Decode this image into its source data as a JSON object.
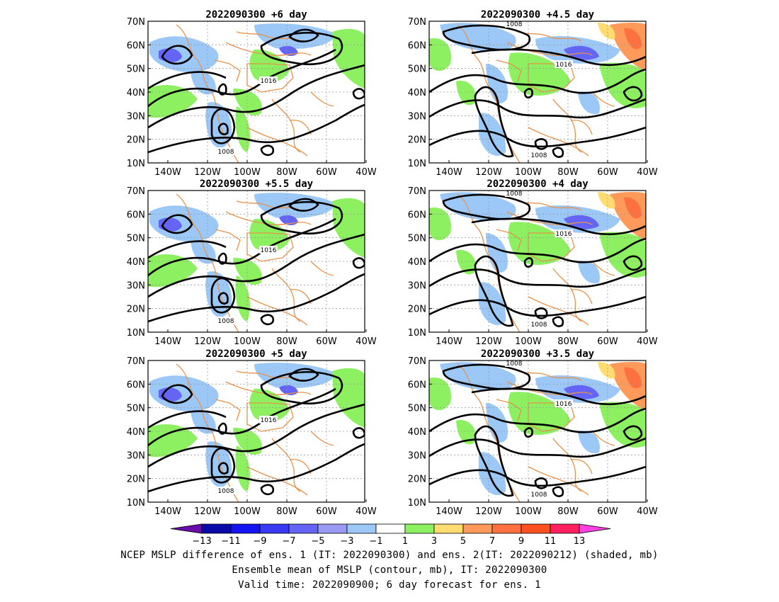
{
  "panels": [
    {
      "title": "2022090300  +6 day",
      "labels": [
        "1016",
        "1008"
      ]
    },
    {
      "title": "2022090300  +4.5 day",
      "labels": [
        "1008",
        "1016",
        "1008"
      ]
    },
    {
      "title": "2022090300  +5.5 day",
      "labels": [
        "1016",
        "1008"
      ]
    },
    {
      "title": "2022090300  +4 day",
      "labels": [
        "1008",
        "1016",
        "1008"
      ]
    },
    {
      "title": "2022090300  +5 day",
      "labels": [
        "1016",
        "1008"
      ]
    },
    {
      "title": "2022090300  +3.5 day",
      "labels": [
        "1008",
        "1016",
        "1008"
      ]
    }
  ],
  "axes": {
    "lat_labels": [
      "70N",
      "60N",
      "50N",
      "40N",
      "30N",
      "20N",
      "10N"
    ],
    "lon_labels": [
      "140W",
      "120W",
      "100W",
      "80W",
      "60W",
      "40W"
    ]
  },
  "colorbar": {
    "tick_labels": [
      "−13",
      "−11",
      "−9",
      "−7",
      "−5",
      "−3",
      "−1",
      "1",
      "3",
      "5",
      "7",
      "9",
      "11",
      "13"
    ],
    "colors": [
      "#6a0dad",
      "#0a0aa8",
      "#1414f0",
      "#3a3af5",
      "#6464f5",
      "#9a9af5",
      "#9cc8f8",
      "#ffffff",
      "#8cf060",
      "#ffdc70",
      "#ff9a5a",
      "#ff7040",
      "#ff5020",
      "#ff2060",
      "#ff40e0"
    ]
  },
  "caption": {
    "line1": "NCEP MSLP difference of ens. 1 (IT: 2022090300) and ens. 2(IT: 2022090212) (shaded, mb)",
    "line2": "Ensemble mean of MSLP (contour, mb), IT: 2022090300",
    "line3": "Valid time: 2022090900; 6 day forecast for ens. 1"
  }
}
